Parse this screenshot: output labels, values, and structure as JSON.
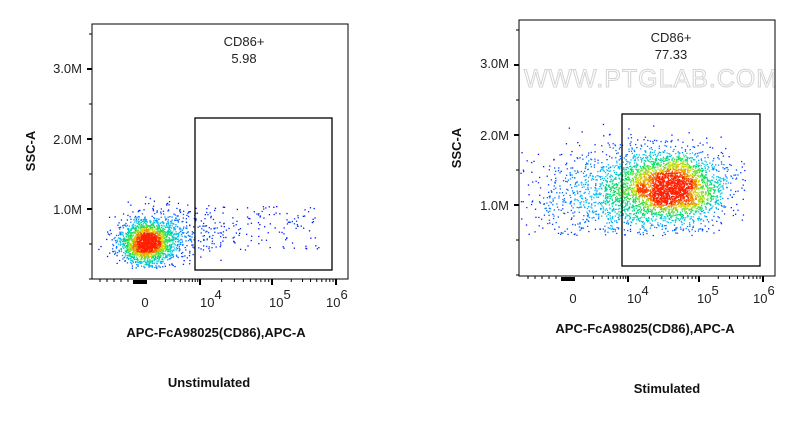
{
  "chart_data": [
    {
      "type": "scatter",
      "subtype": "flow-cytometry density dot plot",
      "title": "Unstimulated",
      "xlabel": "APC-FcA98025(CD86),APC-A",
      "ylabel": "SSC-A",
      "x_scale": "biexponential",
      "x_ticks": [
        "0",
        "10^4",
        "10^5",
        "10^6"
      ],
      "y_ticks": [
        "1.0M",
        "2.0M",
        "3.0M"
      ],
      "ylim": [
        0,
        3600000
      ],
      "gate": {
        "name": "CD86+",
        "value": "5.98",
        "x_range": [
          8000,
          800000
        ],
        "y_range": [
          150000,
          2300000
        ]
      },
      "population_center": {
        "x": 0,
        "y": 500000
      }
    },
    {
      "type": "scatter",
      "subtype": "flow-cytometry density dot plot",
      "title": "Stimulated",
      "xlabel": "APC-FcA98025(CD86),APC-A",
      "ylabel": "SSC-A",
      "x_scale": "biexponential",
      "x_ticks": [
        "0",
        "10^4",
        "10^5",
        "10^6"
      ],
      "y_ticks": [
        "1.0M",
        "2.0M",
        "3.0M"
      ],
      "ylim": [
        0,
        3600000
      ],
      "gate": {
        "name": "CD86+",
        "value": "77.33",
        "x_range": [
          8000,
          800000
        ],
        "y_range": [
          150000,
          2300000
        ]
      },
      "population_center": {
        "x": 40000,
        "y": 1250000
      }
    }
  ],
  "watermark": "WWW.PTGLAB.COM",
  "density_colors": [
    "#0000ff",
    "#00c0ff",
    "#00e060",
    "#e0e000",
    "#ff2000"
  ]
}
